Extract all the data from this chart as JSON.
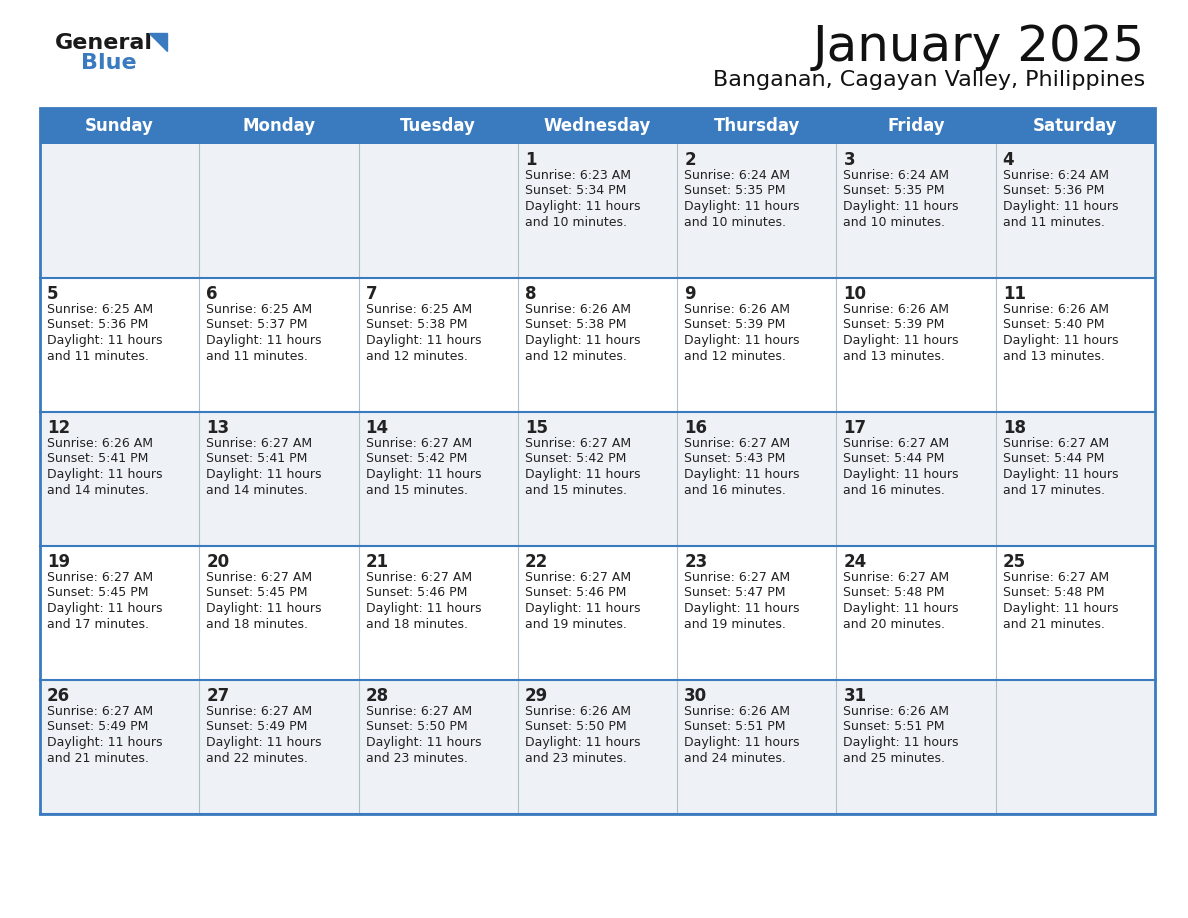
{
  "title": "January 2025",
  "subtitle": "Banganan, Cagayan Valley, Philippines",
  "header_color": "#3a7abf",
  "header_text_color": "#ffffff",
  "day_names": [
    "Sunday",
    "Monday",
    "Tuesday",
    "Wednesday",
    "Thursday",
    "Friday",
    "Saturday"
  ],
  "row_bg_even": "#eef2f7",
  "row_bg_odd": "#ffffff",
  "border_color": "#3a7abf",
  "grid_line_color": "#b0bec8",
  "text_color": "#222222",
  "days": [
    {
      "day": 1,
      "col": 3,
      "row": 0,
      "sunrise": "6:23 AM",
      "sunset": "5:34 PM",
      "daylight_h": "11 hours",
      "daylight_m": "10 minutes."
    },
    {
      "day": 2,
      "col": 4,
      "row": 0,
      "sunrise": "6:24 AM",
      "sunset": "5:35 PM",
      "daylight_h": "11 hours",
      "daylight_m": "10 minutes."
    },
    {
      "day": 3,
      "col": 5,
      "row": 0,
      "sunrise": "6:24 AM",
      "sunset": "5:35 PM",
      "daylight_h": "11 hours",
      "daylight_m": "10 minutes."
    },
    {
      "day": 4,
      "col": 6,
      "row": 0,
      "sunrise": "6:24 AM",
      "sunset": "5:36 PM",
      "daylight_h": "11 hours",
      "daylight_m": "11 minutes."
    },
    {
      "day": 5,
      "col": 0,
      "row": 1,
      "sunrise": "6:25 AM",
      "sunset": "5:36 PM",
      "daylight_h": "11 hours",
      "daylight_m": "11 minutes."
    },
    {
      "day": 6,
      "col": 1,
      "row": 1,
      "sunrise": "6:25 AM",
      "sunset": "5:37 PM",
      "daylight_h": "11 hours",
      "daylight_m": "11 minutes."
    },
    {
      "day": 7,
      "col": 2,
      "row": 1,
      "sunrise": "6:25 AM",
      "sunset": "5:38 PM",
      "daylight_h": "11 hours",
      "daylight_m": "12 minutes."
    },
    {
      "day": 8,
      "col": 3,
      "row": 1,
      "sunrise": "6:26 AM",
      "sunset": "5:38 PM",
      "daylight_h": "11 hours",
      "daylight_m": "12 minutes."
    },
    {
      "day": 9,
      "col": 4,
      "row": 1,
      "sunrise": "6:26 AM",
      "sunset": "5:39 PM",
      "daylight_h": "11 hours",
      "daylight_m": "12 minutes."
    },
    {
      "day": 10,
      "col": 5,
      "row": 1,
      "sunrise": "6:26 AM",
      "sunset": "5:39 PM",
      "daylight_h": "11 hours",
      "daylight_m": "13 minutes."
    },
    {
      "day": 11,
      "col": 6,
      "row": 1,
      "sunrise": "6:26 AM",
      "sunset": "5:40 PM",
      "daylight_h": "11 hours",
      "daylight_m": "13 minutes."
    },
    {
      "day": 12,
      "col": 0,
      "row": 2,
      "sunrise": "6:26 AM",
      "sunset": "5:41 PM",
      "daylight_h": "11 hours",
      "daylight_m": "14 minutes."
    },
    {
      "day": 13,
      "col": 1,
      "row": 2,
      "sunrise": "6:27 AM",
      "sunset": "5:41 PM",
      "daylight_h": "11 hours",
      "daylight_m": "14 minutes."
    },
    {
      "day": 14,
      "col": 2,
      "row": 2,
      "sunrise": "6:27 AM",
      "sunset": "5:42 PM",
      "daylight_h": "11 hours",
      "daylight_m": "15 minutes."
    },
    {
      "day": 15,
      "col": 3,
      "row": 2,
      "sunrise": "6:27 AM",
      "sunset": "5:42 PM",
      "daylight_h": "11 hours",
      "daylight_m": "15 minutes."
    },
    {
      "day": 16,
      "col": 4,
      "row": 2,
      "sunrise": "6:27 AM",
      "sunset": "5:43 PM",
      "daylight_h": "11 hours",
      "daylight_m": "16 minutes."
    },
    {
      "day": 17,
      "col": 5,
      "row": 2,
      "sunrise": "6:27 AM",
      "sunset": "5:44 PM",
      "daylight_h": "11 hours",
      "daylight_m": "16 minutes."
    },
    {
      "day": 18,
      "col": 6,
      "row": 2,
      "sunrise": "6:27 AM",
      "sunset": "5:44 PM",
      "daylight_h": "11 hours",
      "daylight_m": "17 minutes."
    },
    {
      "day": 19,
      "col": 0,
      "row": 3,
      "sunrise": "6:27 AM",
      "sunset": "5:45 PM",
      "daylight_h": "11 hours",
      "daylight_m": "17 minutes."
    },
    {
      "day": 20,
      "col": 1,
      "row": 3,
      "sunrise": "6:27 AM",
      "sunset": "5:45 PM",
      "daylight_h": "11 hours",
      "daylight_m": "18 minutes."
    },
    {
      "day": 21,
      "col": 2,
      "row": 3,
      "sunrise": "6:27 AM",
      "sunset": "5:46 PM",
      "daylight_h": "11 hours",
      "daylight_m": "18 minutes."
    },
    {
      "day": 22,
      "col": 3,
      "row": 3,
      "sunrise": "6:27 AM",
      "sunset": "5:46 PM",
      "daylight_h": "11 hours",
      "daylight_m": "19 minutes."
    },
    {
      "day": 23,
      "col": 4,
      "row": 3,
      "sunrise": "6:27 AM",
      "sunset": "5:47 PM",
      "daylight_h": "11 hours",
      "daylight_m": "19 minutes."
    },
    {
      "day": 24,
      "col": 5,
      "row": 3,
      "sunrise": "6:27 AM",
      "sunset": "5:48 PM",
      "daylight_h": "11 hours",
      "daylight_m": "20 minutes."
    },
    {
      "day": 25,
      "col": 6,
      "row": 3,
      "sunrise": "6:27 AM",
      "sunset": "5:48 PM",
      "daylight_h": "11 hours",
      "daylight_m": "21 minutes."
    },
    {
      "day": 26,
      "col": 0,
      "row": 4,
      "sunrise": "6:27 AM",
      "sunset": "5:49 PM",
      "daylight_h": "11 hours",
      "daylight_m": "21 minutes."
    },
    {
      "day": 27,
      "col": 1,
      "row": 4,
      "sunrise": "6:27 AM",
      "sunset": "5:49 PM",
      "daylight_h": "11 hours",
      "daylight_m": "22 minutes."
    },
    {
      "day": 28,
      "col": 2,
      "row": 4,
      "sunrise": "6:27 AM",
      "sunset": "5:50 PM",
      "daylight_h": "11 hours",
      "daylight_m": "23 minutes."
    },
    {
      "day": 29,
      "col": 3,
      "row": 4,
      "sunrise": "6:26 AM",
      "sunset": "5:50 PM",
      "daylight_h": "11 hours",
      "daylight_m": "23 minutes."
    },
    {
      "day": 30,
      "col": 4,
      "row": 4,
      "sunrise": "6:26 AM",
      "sunset": "5:51 PM",
      "daylight_h": "11 hours",
      "daylight_m": "24 minutes."
    },
    {
      "day": 31,
      "col": 5,
      "row": 4,
      "sunrise": "6:26 AM",
      "sunset": "5:51 PM",
      "daylight_h": "11 hours",
      "daylight_m": "25 minutes."
    }
  ],
  "logo_text_general": "General",
  "logo_text_blue": "Blue",
  "logo_color_general": "#1a1a1a",
  "logo_color_blue": "#3a7abf",
  "logo_triangle_color": "#3a7abf",
  "title_fontsize": 36,
  "subtitle_fontsize": 16,
  "header_fontsize": 12,
  "day_num_fontsize": 12,
  "cell_text_fontsize": 9,
  "logo_fontsize": 16
}
